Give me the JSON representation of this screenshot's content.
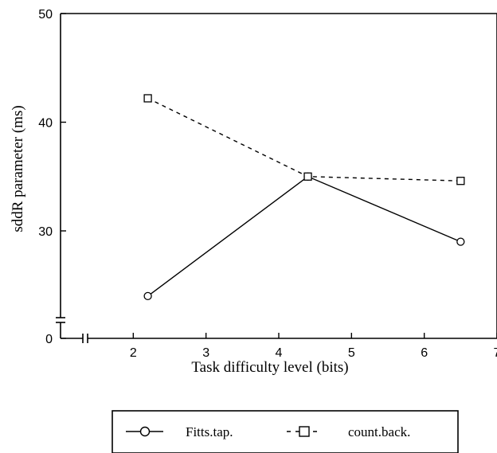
{
  "chart_data": {
    "type": "line",
    "xlabel": "Task difficulty level (bits)",
    "ylabel": "sddR parameter (ms)",
    "xlim": [
      1,
      7
    ],
    "ylim": [
      20,
      50
    ],
    "y_axis_break": {
      "below_value": 23,
      "shown_as": 0
    },
    "x_axis_break": true,
    "x_ticks": [
      "2",
      "3",
      "4",
      "5",
      "6",
      "7"
    ],
    "y_ticks": [
      "0",
      "30",
      "40",
      "50"
    ],
    "grid": false,
    "legend_position": "bottom",
    "series": [
      {
        "name": "Fitts.tap.",
        "marker": "circle",
        "line_style": "solid",
        "x": [
          2.2,
          4.4,
          6.5
        ],
        "y": [
          24.0,
          35.0,
          29.0
        ]
      },
      {
        "name": "count.back.",
        "marker": "square",
        "line_style": "dashed",
        "x": [
          2.2,
          4.4,
          6.5
        ],
        "y": [
          42.2,
          35.0,
          34.6
        ]
      }
    ]
  }
}
